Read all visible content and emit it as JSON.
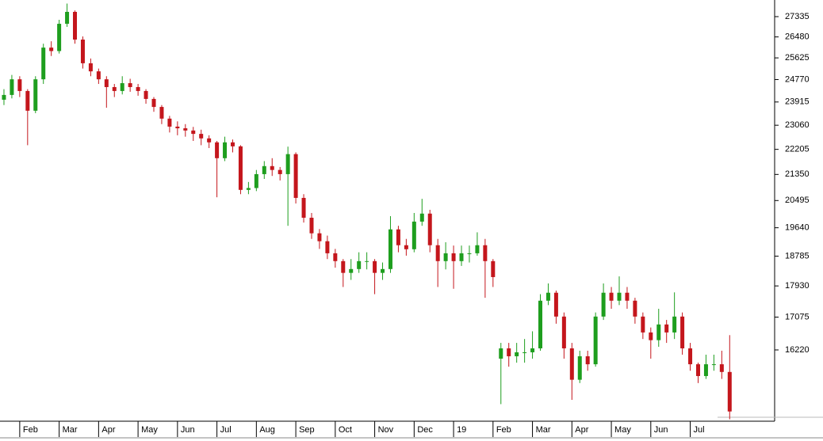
{
  "chart_data": {
    "type": "candlestick",
    "log_scale": true,
    "up_color": "#1e9e1e",
    "down_color": "#c4161c",
    "xlim": [
      0.5,
      20.14
    ],
    "ylim": [
      14507,
      28056
    ],
    "yticks": [
      27335,
      26480,
      25625,
      24770,
      23915,
      23060,
      22205,
      21350,
      20495,
      19640,
      18785,
      17930,
      17075,
      16220
    ],
    "xticks": [
      {
        "value": 1,
        "label": "Feb"
      },
      {
        "value": 2,
        "label": "Mar"
      },
      {
        "value": 3,
        "label": "Apr"
      },
      {
        "value": 4,
        "label": "May"
      },
      {
        "value": 5,
        "label": "Jun"
      },
      {
        "value": 6,
        "label": "Jul"
      },
      {
        "value": 7,
        "label": "Aug"
      },
      {
        "value": 8,
        "label": "Sep"
      },
      {
        "value": 9,
        "label": "Oct"
      },
      {
        "value": 10,
        "label": "Nov"
      },
      {
        "value": 11,
        "label": "Dec"
      },
      {
        "value": 12,
        "label": "19"
      },
      {
        "value": 13,
        "label": "Feb"
      },
      {
        "value": 14,
        "label": "Mar"
      },
      {
        "value": 15,
        "label": "Apr"
      },
      {
        "value": 16,
        "label": "May"
      },
      {
        "value": 17,
        "label": "Jun"
      },
      {
        "value": 18,
        "label": "Jul"
      }
    ],
    "x": [
      0.6,
      0.8,
      1.0,
      1.2,
      1.4,
      1.6,
      1.8,
      2.0,
      2.2,
      2.4,
      2.6,
      2.8,
      3.0,
      3.2,
      3.4,
      3.6,
      3.8,
      4.0,
      4.2,
      4.4,
      4.6,
      4.8,
      5.0,
      5.2,
      5.4,
      5.6,
      5.8,
      6.0,
      6.2,
      6.4,
      6.6,
      6.8,
      7.0,
      7.2,
      7.4,
      7.6,
      7.8,
      8.0,
      8.2,
      8.4,
      8.6,
      8.8,
      9.0,
      9.2,
      9.4,
      9.6,
      9.8,
      10.0,
      10.2,
      10.4,
      10.6,
      10.8,
      11.0,
      11.2,
      11.4,
      11.6,
      11.8,
      12.0,
      12.2,
      12.4,
      12.6,
      12.8,
      13.0,
      13.2,
      13.4,
      13.6,
      13.8,
      14.0,
      14.2,
      14.4,
      14.6,
      14.8,
      15.0,
      15.2,
      15.4,
      15.6,
      15.8,
      16.0,
      16.2,
      16.4,
      16.6,
      16.8,
      17.0,
      17.2,
      17.4,
      17.6,
      17.8,
      18.0,
      18.2,
      18.4,
      18.6,
      18.8,
      19.0
    ],
    "open": [
      24000,
      24180,
      24780,
      24330,
      23590,
      24780,
      26040,
      25900,
      27030,
      27540,
      26370,
      25410,
      25090,
      24780,
      24480,
      24330,
      24630,
      24480,
      24330,
      24030,
      23730,
      23300,
      23010,
      22950,
      22870,
      22750,
      22590,
      22450,
      21900,
      22450,
      22310,
      20840,
      20900,
      21360,
      21630,
      21500,
      21360,
      22040,
      20580,
      19950,
      19470,
      19230,
      18870,
      18640,
      18300,
      18410,
      18640,
      18640,
      18300,
      18410,
      19590,
      19110,
      18990,
      19830,
      20080,
      19110,
      18640,
      18870,
      18640,
      18870,
      18870,
      19110,
      18640,
      16000,
      16260,
      16060,
      16160,
      16160,
      16260,
      17520,
      17740,
      17090,
      16260,
      15480,
      16060,
      15860,
      17090,
      17740,
      17520,
      17740,
      17520,
      17090,
      16670,
      16470,
      16880,
      16670,
      17090,
      16260,
      15860,
      15570,
      15860,
      15860,
      15670
    ],
    "high": [
      24400,
      24950,
      24900,
      24400,
      24900,
      26200,
      26300,
      27200,
      27900,
      27600,
      26500,
      25600,
      25200,
      24900,
      24600,
      24900,
      24800,
      24600,
      24400,
      24100,
      23800,
      23400,
      23200,
      23100,
      23000,
      22900,
      22700,
      22500,
      22650,
      22550,
      22350,
      21100,
      21500,
      21800,
      21900,
      21600,
      22300,
      22100,
      20700,
      20100,
      19600,
      19400,
      19000,
      18700,
      18700,
      18900,
      18900,
      18700,
      18600,
      20000,
      19700,
      19300,
      20100,
      20550,
      20200,
      19300,
      19200,
      19100,
      19100,
      19100,
      19500,
      19300,
      18700,
      16400,
      16400,
      16400,
      16500,
      16700,
      17700,
      18000,
      17800,
      17200,
      16400,
      16200,
      16200,
      17200,
      18000,
      17900,
      18200,
      17900,
      17600,
      17200,
      16800,
      17300,
      17000,
      17750,
      17200,
      16400,
      15900,
      16100,
      16100,
      16200,
      16600
    ],
    "low": [
      23800,
      24050,
      24100,
      22350,
      23500,
      24600,
      25700,
      25800,
      26900,
      26200,
      25200,
      24900,
      24600,
      23700,
      24100,
      24200,
      24300,
      24150,
      23850,
      23550,
      23100,
      22800,
      22700,
      22650,
      22500,
      22350,
      22250,
      20600,
      21800,
      22100,
      20700,
      20700,
      20800,
      21200,
      21300,
      21150,
      19700,
      20400,
      19800,
      19300,
      19000,
      18700,
      18450,
      17900,
      18100,
      18300,
      18400,
      17700,
      18100,
      18300,
      18900,
      18800,
      18900,
      19700,
      18900,
      17900,
      18400,
      17850,
      18500,
      18600,
      18800,
      17600,
      17900,
      14900,
      15800,
      15900,
      15900,
      16000,
      16200,
      17400,
      16900,
      16000,
      15000,
      15400,
      15700,
      15800,
      17000,
      17300,
      17400,
      17300,
      16900,
      16500,
      16000,
      16300,
      16400,
      16500,
      16100,
      15700,
      15400,
      15500,
      15700,
      15500,
      14550
    ],
    "close": [
      24180,
      24780,
      24330,
      23590,
      24780,
      26040,
      25900,
      27030,
      27540,
      26370,
      25410,
      25090,
      24780,
      24480,
      24330,
      24630,
      24480,
      24330,
      24030,
      23730,
      23300,
      23010,
      22950,
      22870,
      22750,
      22590,
      22450,
      21900,
      22450,
      22310,
      20840,
      20900,
      21360,
      21630,
      21500,
      21360,
      22040,
      20580,
      19950,
      19470,
      19230,
      18870,
      18640,
      18300,
      18410,
      18640,
      18640,
      18300,
      18410,
      19590,
      19110,
      18990,
      19830,
      20080,
      19110,
      18640,
      18870,
      18640,
      18870,
      18870,
      19110,
      18640,
      18180,
      16260,
      16060,
      16160,
      16160,
      16260,
      17520,
      17740,
      17090,
      16260,
      15480,
      16060,
      15860,
      17090,
      17740,
      17520,
      17740,
      17520,
      17090,
      16670,
      16470,
      16880,
      16670,
      17090,
      16260,
      15860,
      15570,
      15860,
      15860,
      15670,
      14730
    ]
  }
}
